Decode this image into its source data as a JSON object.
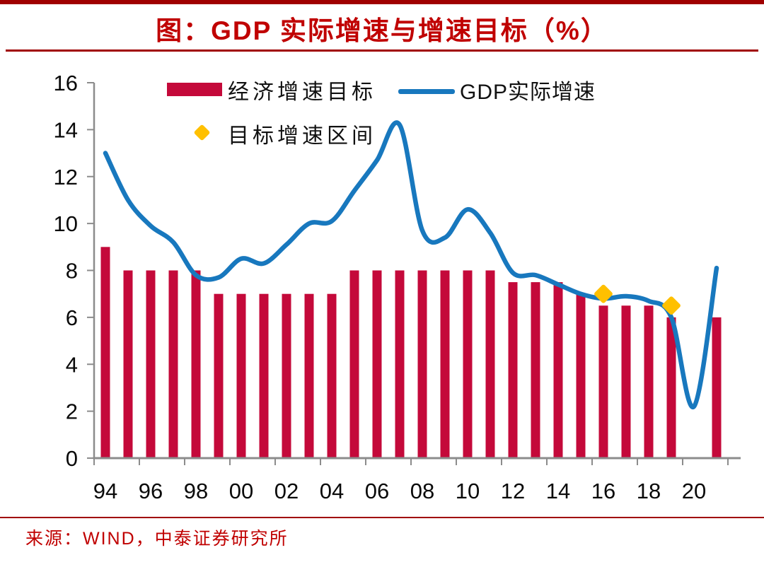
{
  "header": {
    "title": "图：GDP 实际增速与增速目标（%）"
  },
  "legend": {
    "items": [
      {
        "label": "经济增速目标",
        "swatch": "bar",
        "color": "#C4093A"
      },
      {
        "label": "GDP实际增速",
        "swatch": "line",
        "color": "#1878BE"
      },
      {
        "label": "目标增速区间",
        "swatch": "diamond",
        "color": "#FFC000"
      }
    ]
  },
  "footer": {
    "source_label": "来源：WIND，中泰证券研究所"
  },
  "chart_data": {
    "type": "combo",
    "title": "图：GDP 实际增速与增速目标（%）",
    "years": [
      1994,
      1995,
      1996,
      1997,
      1998,
      1999,
      2000,
      2001,
      2002,
      2003,
      2004,
      2005,
      2006,
      2007,
      2008,
      2009,
      2010,
      2011,
      2012,
      2013,
      2014,
      2015,
      2016,
      2017,
      2018,
      2019,
      2020,
      2021
    ],
    "series": [
      {
        "name": "经济增速目标",
        "type": "bar",
        "color": "#C4093A",
        "values": [
          9,
          8,
          8,
          8,
          8,
          7,
          7,
          7,
          7,
          7,
          7,
          8,
          8,
          8,
          8,
          8,
          8,
          8,
          7.5,
          7.5,
          7.5,
          7,
          6.5,
          6.5,
          6.5,
          6,
          null,
          6
        ]
      },
      {
        "name": "GDP实际增速",
        "type": "line",
        "color": "#1878BE",
        "values": [
          13.0,
          11.0,
          9.9,
          9.2,
          7.8,
          7.7,
          8.5,
          8.3,
          9.1,
          10.0,
          10.1,
          11.4,
          12.7,
          14.2,
          9.7,
          9.4,
          10.6,
          9.6,
          7.9,
          7.8,
          7.4,
          7.0,
          6.8,
          6.9,
          6.7,
          6.0,
          2.2,
          8.1
        ]
      },
      {
        "name": "目标增速区间",
        "type": "scatter",
        "marker": "diamond",
        "color": "#FFC000",
        "points": [
          {
            "year": 2016,
            "value": 7.0
          },
          {
            "year": 2019,
            "value": 6.5
          }
        ]
      }
    ],
    "xticks": [
      "94",
      "96",
      "98",
      "00",
      "02",
      "04",
      "06",
      "08",
      "10",
      "12",
      "14",
      "16",
      "18",
      "20"
    ],
    "yticks": [
      0,
      2,
      4,
      6,
      8,
      10,
      12,
      14,
      16
    ],
    "ylim": [
      0,
      16
    ],
    "grid": false,
    "legend_position": "top-left-inside",
    "axis_color": "#8C8C8C",
    "tick_label_color": "#0A0A0A",
    "title_color": "#C00000",
    "rule_color": "#A00000"
  }
}
